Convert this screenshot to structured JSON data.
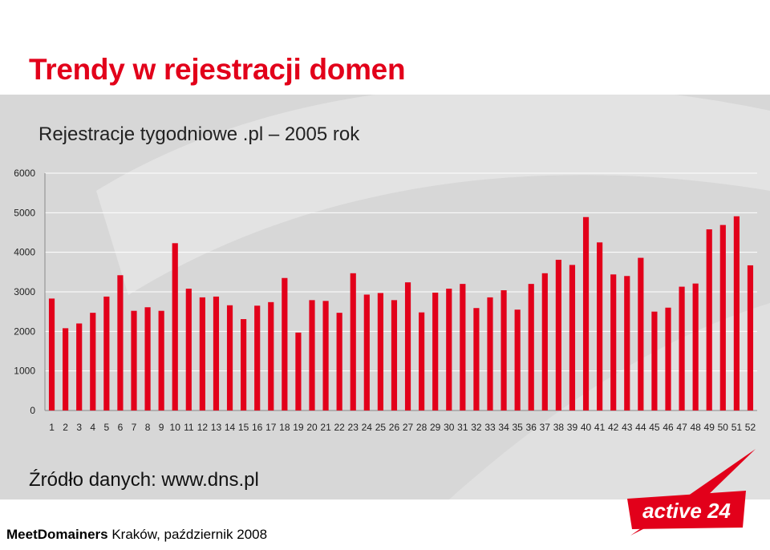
{
  "slide": {
    "title": "Trendy w rejestracji domen",
    "source": "Źródło danych: www.dns.pl",
    "footer_brand": "MeetDomainers",
    "footer_rest": " Kraków, październik 2008",
    "logo_text": "active 24"
  },
  "colors": {
    "accent": "#e2001a",
    "band": "#d7d7d7",
    "bars": "#e2001a"
  },
  "chart_data": {
    "type": "bar",
    "title": "Rejestracje tygodniowe .pl – 2005 rok",
    "xlabel": "",
    "ylabel": "",
    "ylim": [
      0,
      6000
    ],
    "yticks": [
      0,
      1000,
      2000,
      3000,
      4000,
      5000,
      6000
    ],
    "grid": true,
    "legend": "none",
    "categories": [
      "1",
      "2",
      "3",
      "4",
      "5",
      "6",
      "7",
      "8",
      "9",
      "10",
      "11",
      "12",
      "13",
      "14",
      "15",
      "16",
      "17",
      "18",
      "19",
      "20",
      "21",
      "22",
      "23",
      "24",
      "25",
      "26",
      "27",
      "28",
      "29",
      "30",
      "31",
      "32",
      "33",
      "34",
      "35",
      "36",
      "37",
      "38",
      "39",
      "40",
      "41",
      "42",
      "43",
      "44",
      "45",
      "46",
      "47",
      "48",
      "49",
      "50",
      "51",
      "52"
    ],
    "values": [
      2830,
      2080,
      2200,
      2470,
      2880,
      3420,
      2520,
      2610,
      2520,
      4230,
      3080,
      2860,
      2880,
      2660,
      2310,
      2650,
      2740,
      3350,
      1970,
      2790,
      2770,
      2470,
      3470,
      2930,
      2970,
      2790,
      3240,
      2480,
      2980,
      3080,
      3200,
      2590,
      2860,
      3040,
      2550,
      3200,
      3470,
      3810,
      3680,
      4890,
      4250,
      3440,
      3400,
      3860,
      2500,
      2600,
      3130,
      3210,
      4580,
      4690,
      4910,
      3670
    ]
  }
}
